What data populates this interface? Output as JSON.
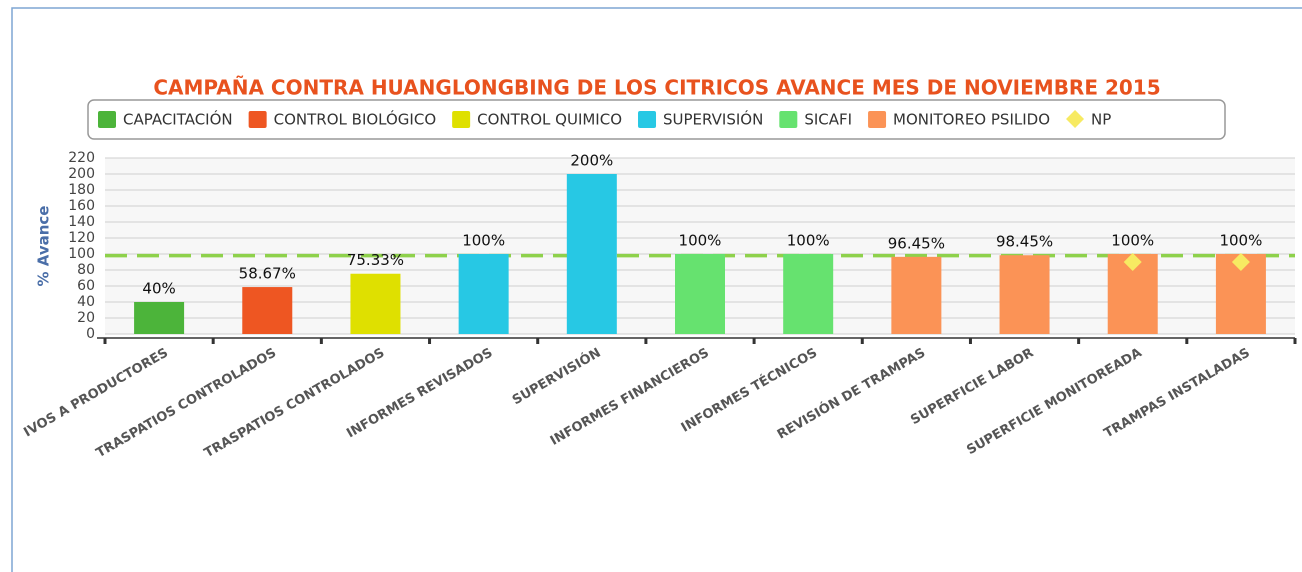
{
  "chart_data": {
    "type": "bar",
    "title": "CAMPAÑA CONTRA HUANGLONGBING DE LOS CITRICOS AVANCE MES DE NOVIEMBRE 2015",
    "y_label": "% Avance",
    "categories": [
      "IVOS A PRODUCTORES",
      "TRASPATIOS CONTROLADOS",
      "TRASPATIOS CONTROLADOS",
      "INFORMES REVISADOS",
      "SUPERVISIÓN",
      "INFORMES FINANCIEROS",
      "INFORMES TÉCNICOS",
      "REVISIÓN DE TRAMPAS",
      "SUPERFICIE LABOR",
      "SUPERFICIE MONITOREADA",
      "TRAMPAS INSTALADAS"
    ],
    "series": [
      {
        "name": "CAPACITACIÓN",
        "color": "#4cb43a",
        "values": [
          40,
          null,
          null,
          null,
          null,
          null,
          null,
          null,
          null,
          null,
          null
        ],
        "value_labels": [
          "40%",
          null,
          null,
          null,
          null,
          null,
          null,
          null,
          null,
          null,
          null
        ]
      },
      {
        "name": "CONTROL BIOLÓGICO",
        "color": "#ee5622",
        "values": [
          null,
          58.67,
          null,
          null,
          null,
          null,
          null,
          null,
          null,
          null,
          null
        ],
        "value_labels": [
          null,
          "58.67%",
          null,
          null,
          null,
          null,
          null,
          null,
          null,
          null,
          null
        ]
      },
      {
        "name": "CONTROL QUIMICO",
        "color": "#dfe000",
        "values": [
          null,
          null,
          75.33,
          null,
          null,
          null,
          null,
          null,
          null,
          null,
          null
        ],
        "value_labels": [
          null,
          null,
          "75.33%",
          null,
          null,
          null,
          null,
          null,
          null,
          null,
          null
        ]
      },
      {
        "name": "SUPERVISIÓN",
        "color": "#27c8e4",
        "values": [
          null,
          null,
          null,
          100,
          200,
          null,
          null,
          null,
          null,
          null,
          null
        ],
        "value_labels": [
          null,
          null,
          null,
          "100%",
          "200%",
          null,
          null,
          null,
          null,
          null,
          null
        ]
      },
      {
        "name": "SICAFI",
        "color": "#66e26f",
        "values": [
          null,
          null,
          null,
          null,
          null,
          100,
          100,
          null,
          null,
          null,
          null
        ],
        "value_labels": [
          null,
          null,
          null,
          null,
          null,
          "100%",
          "100%",
          null,
          null,
          null,
          null
        ]
      },
      {
        "name": "MONITOREO PSILIDO",
        "color": "#fb9356",
        "values": [
          null,
          null,
          null,
          null,
          null,
          null,
          null,
          96.45,
          98.45,
          100,
          100
        ],
        "value_labels": [
          null,
          null,
          null,
          null,
          null,
          null,
          null,
          "96.45%",
          "98.45%",
          "100%",
          "100%"
        ]
      },
      {
        "name": "NP",
        "color": "#f7ea62",
        "type": "scatter",
        "marker": "diamond",
        "values": [
          null,
          null,
          null,
          null,
          null,
          null,
          null,
          null,
          null,
          90,
          90
        ]
      }
    ],
    "reference_line": {
      "value": 98,
      "color": "#8ed14b",
      "style": "dashed"
    },
    "ylim": [
      0,
      220
    ],
    "yticks": [
      0,
      20,
      40,
      60,
      80,
      100,
      120,
      140,
      160,
      180,
      200,
      220
    ],
    "grid": true
  }
}
